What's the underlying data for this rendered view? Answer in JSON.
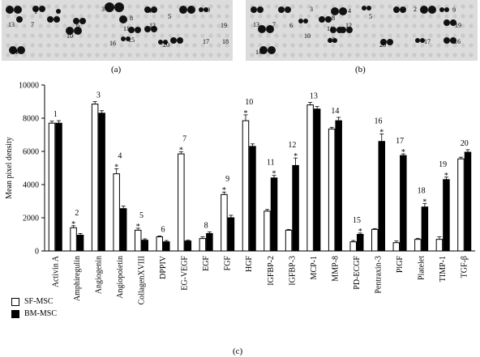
{
  "panels": {
    "a": {
      "label": "(a)",
      "spot_numbers": [
        "1",
        "2",
        "3",
        "4",
        "5",
        "6",
        "7",
        "8",
        "9",
        "10",
        "11",
        "12",
        "13",
        "14",
        "15",
        "16",
        "17",
        "18",
        "19",
        "20"
      ]
    },
    "b": {
      "label": "(b)",
      "spot_numbers": [
        "2",
        "3",
        "4",
        "5",
        "6",
        "7",
        "8",
        "9",
        "10",
        "11",
        "12",
        "13",
        "14",
        "15",
        "16",
        "17",
        "19",
        "20"
      ]
    },
    "c": {
      "label": "(c)"
    }
  },
  "legend": [
    {
      "label": "SF-MSC",
      "color": "#ffffff"
    },
    {
      "label": "BM-MSC",
      "color": "#000000"
    }
  ],
  "chart_data": {
    "type": "bar",
    "ylabel": "Mean pixel density",
    "xlabel": "",
    "ylim": [
      0,
      10000
    ],
    "yticks": [
      "0",
      "2000",
      "4000",
      "6000",
      "8000",
      "10000"
    ],
    "grid": false,
    "legend_position": "bottom-left",
    "categories": [
      "Activin A",
      "Amphiregulin",
      "Angiogenin",
      "Angiopoietin",
      "CollagenXVIII",
      "DPPIV",
      "EG-VEGF",
      "EGF",
      "FGF",
      "HGF",
      "IGFBP-2",
      "IGFBP-3",
      "MCP-1",
      "MMP-8",
      "PD-ECGF",
      "Pentraxin-3",
      "PlGF",
      "Platelet",
      "TIMP-1",
      "TGF-β"
    ],
    "group_numbers": [
      "1",
      "2",
      "3",
      "4",
      "5",
      "6",
      "7",
      "8",
      "9",
      "10",
      "11",
      "12",
      "13",
      "14",
      "15",
      "16",
      "17",
      "18",
      "19",
      "20"
    ],
    "series": [
      {
        "name": "SF-MSC",
        "color": "#ffffff",
        "values": [
          7700,
          1400,
          8850,
          4650,
          1250,
          850,
          5850,
          750,
          3400,
          7850,
          2400,
          1250,
          8800,
          7350,
          550,
          1300,
          500,
          700,
          700,
          5550
        ],
        "errors": [
          120,
          120,
          150,
          300,
          120,
          50,
          120,
          100,
          150,
          350,
          100,
          50,
          150,
          100,
          80,
          50,
          100,
          50,
          150,
          100
        ]
      },
      {
        "name": "BM-MSC",
        "color": "#000000",
        "values": [
          7700,
          950,
          8300,
          2550,
          650,
          550,
          600,
          1050,
          2000,
          6300,
          4400,
          5150,
          8550,
          7850,
          1000,
          6600,
          5750,
          2650,
          4300,
          5950
        ],
        "errors": [
          150,
          100,
          150,
          150,
          80,
          80,
          50,
          100,
          150,
          150,
          150,
          450,
          150,
          200,
          80,
          450,
          100,
          200,
          150,
          150
        ]
      }
    ],
    "asterisks": [
      {
        "category": "Amphiregulin",
        "series": "SF-MSC",
        "label": "*"
      },
      {
        "category": "Angiopoietin",
        "series": "SF-MSC",
        "label": "*"
      },
      {
        "category": "CollagenXVIII",
        "series": "SF-MSC",
        "label": "*"
      },
      {
        "category": "EG-VEGF",
        "series": "SF-MSC",
        "label": "*"
      },
      {
        "category": "FGF",
        "series": "SF-MSC",
        "label": "*"
      },
      {
        "category": "HGF",
        "series": "SF-MSC",
        "label": "*"
      },
      {
        "category": "IGFBP-2",
        "series": "BM-MSC",
        "label": "*"
      },
      {
        "category": "IGFBP-3",
        "series": "BM-MSC",
        "label": "*"
      },
      {
        "category": "PD-ECGF",
        "series": "BM-MSC",
        "label": "*"
      },
      {
        "category": "Pentraxin-3",
        "series": "BM-MSC",
        "label": "*"
      },
      {
        "category": "PlGF",
        "series": "BM-MSC",
        "label": "*"
      },
      {
        "category": "Platelet",
        "series": "BM-MSC",
        "label": "*"
      },
      {
        "category": "TIMP-1",
        "series": "BM-MSC",
        "label": "*"
      }
    ]
  }
}
